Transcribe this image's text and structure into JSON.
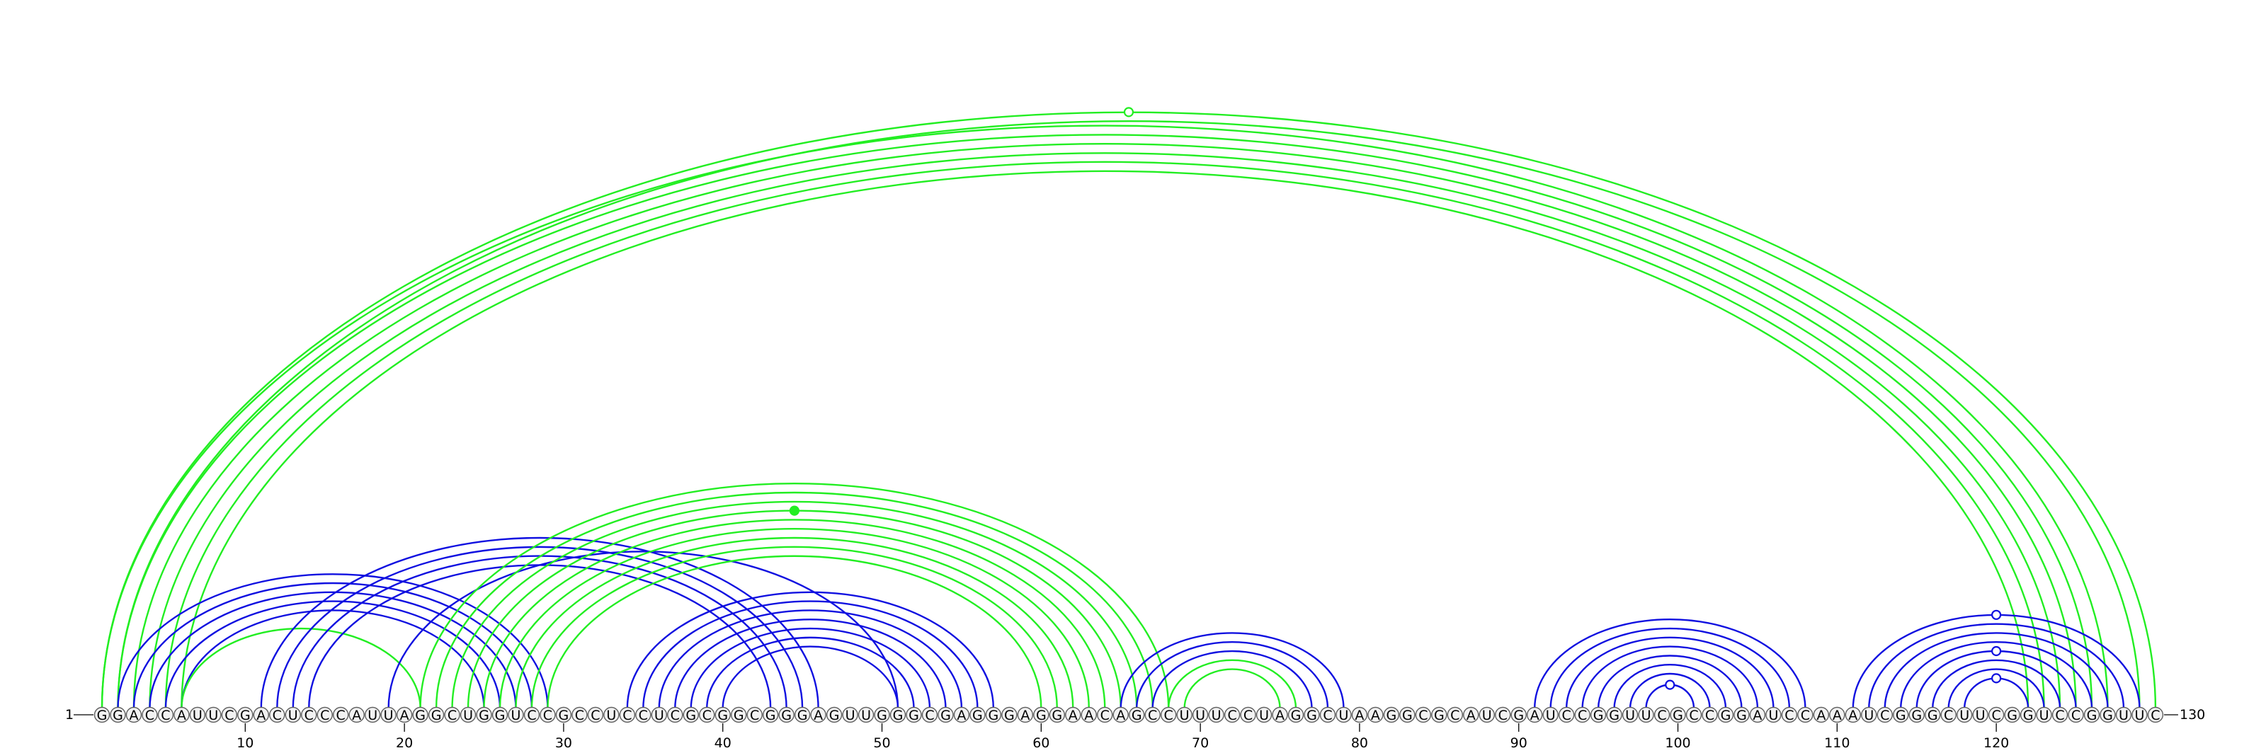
{
  "sequence": "GGACCAUUCGACUCCCAUUAGGCUGGUCCGCCUCCUCGCGGCGGGAGUUGGGCGAGGGAGGAACAGCCUUUCCUAGGCUAAGGCGCAUCGAUCCGGUUCGCCGGAUCCAAAUCGGGCUUCGGUCCGGUUC",
  "start_label": "1",
  "end_label": "130",
  "ticks": [
    "10",
    "20",
    "30",
    "40",
    "50",
    "60",
    "70",
    "80",
    "90",
    "100",
    "110",
    "120"
  ],
  "colors": {
    "blue": "#1010e0",
    "green": "#22ee22"
  },
  "arc_groups": [
    {
      "color": "green",
      "pairs": [
        [
          1,
          127
        ],
        [
          2,
          126
        ],
        [
          3,
          125
        ],
        [
          4,
          124
        ],
        [
          5,
          123
        ],
        [
          6,
          122
        ]
      ]
    },
    {
      "color": "green",
      "pairs": [
        [
          1,
          130
        ],
        [
          2,
          129
        ]
      ]
    },
    {
      "color": "blue",
      "pairs": [
        [
          2,
          29
        ],
        [
          3,
          28
        ],
        [
          4,
          27
        ],
        [
          5,
          26
        ],
        [
          6,
          25
        ]
      ]
    },
    {
      "color": "green",
      "pairs": [
        [
          6,
          21
        ]
      ]
    },
    {
      "color": "blue",
      "pairs": [
        [
          11,
          46
        ],
        [
          12,
          45
        ],
        [
          13,
          44
        ],
        [
          14,
          43
        ]
      ]
    },
    {
      "color": "blue",
      "pairs": [
        [
          19,
          51
        ]
      ]
    },
    {
      "color": "green",
      "pairs": [
        [
          21,
          68
        ],
        [
          22,
          67
        ],
        [
          23,
          66
        ],
        [
          24,
          65
        ],
        [
          25,
          64
        ],
        [
          26,
          63
        ],
        [
          27,
          62
        ],
        [
          28,
          61
        ],
        [
          29,
          60
        ]
      ]
    },
    {
      "color": "blue",
      "pairs": [
        [
          34,
          57
        ],
        [
          35,
          56
        ],
        [
          36,
          55
        ],
        [
          37,
          54
        ],
        [
          38,
          53
        ],
        [
          39,
          52
        ],
        [
          40,
          51
        ]
      ]
    },
    {
      "color": "blue",
      "pairs": [
        [
          65,
          79
        ],
        [
          66,
          78
        ],
        [
          67,
          77
        ]
      ]
    },
    {
      "color": "green",
      "pairs": [
        [
          68,
          76
        ],
        [
          69,
          75
        ]
      ]
    },
    {
      "color": "blue",
      "pairs": [
        [
          91,
          108
        ],
        [
          92,
          107
        ],
        [
          93,
          106
        ],
        [
          94,
          105
        ],
        [
          95,
          104
        ],
        [
          96,
          103
        ],
        [
          97,
          102
        ],
        [
          98,
          101
        ]
      ]
    },
    {
      "color": "blue",
      "pairs": [
        [
          111,
          129
        ],
        [
          112,
          128
        ],
        [
          113,
          127
        ],
        [
          114,
          126
        ],
        [
          115,
          125
        ],
        [
          116,
          124
        ],
        [
          117,
          123
        ],
        [
          118,
          122
        ]
      ]
    }
  ],
  "markers": [
    {
      "color": "green",
      "hollow": true,
      "pair": [
        1,
        130
      ]
    },
    {
      "color": "green",
      "hollow": false,
      "pair": [
        24,
        65
      ]
    },
    {
      "color": "blue",
      "hollow": true,
      "pair": [
        98,
        101
      ]
    },
    {
      "color": "blue",
      "hollow": true,
      "pair": [
        111,
        129
      ]
    },
    {
      "color": "blue",
      "hollow": true,
      "pair": [
        115,
        125
      ]
    },
    {
      "color": "blue",
      "hollow": true,
      "pair": [
        118,
        122
      ]
    }
  ]
}
